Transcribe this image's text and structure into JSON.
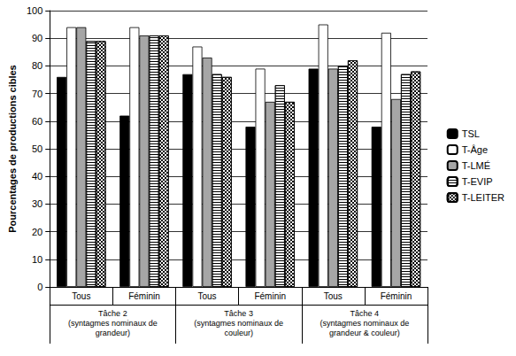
{
  "chart_data": {
    "type": "bar",
    "y_label": "Pourcentages de productions cibles",
    "categories": [
      "Tous",
      "Féminin",
      "Tous",
      "Féminin",
      "Tous",
      "Féminin"
    ],
    "groups": [
      "Tâche 2\n(syntagmes nominaux de\ngrandeur)",
      "Tâche 3\n(syntagmes nominaux de\ncouleur)",
      "Tâche 4\n(syntagmes nominaux de\ngrandeur & couleur)"
    ],
    "series": [
      {
        "name": "TSL",
        "color": "#000000",
        "values": [
          76,
          62,
          77,
          58,
          79,
          58
        ]
      },
      {
        "name": "T-Âge",
        "color": "#ffffff",
        "values": [
          94,
          94,
          87,
          79,
          95,
          92
        ]
      },
      {
        "name": "T-LMÉ",
        "color": "#a6a6a6",
        "values": [
          94,
          91,
          83,
          67,
          79,
          68
        ]
      },
      {
        "name": "T-EVIP",
        "color": "#ffffff",
        "marker": "horizontal_stripes",
        "values": [
          89,
          91,
          77,
          73,
          80,
          77
        ]
      },
      {
        "name": "T-LEITER",
        "color": "#ffffff",
        "marker": "checkered",
        "values": [
          89,
          91,
          76,
          67,
          82,
          78
        ]
      }
    ],
    "ylim": [
      0,
      100
    ],
    "yticks": [
      0,
      10,
      20,
      30,
      40,
      50,
      60,
      70,
      80,
      90,
      100
    ],
    "grid": true,
    "legend": "right"
  }
}
